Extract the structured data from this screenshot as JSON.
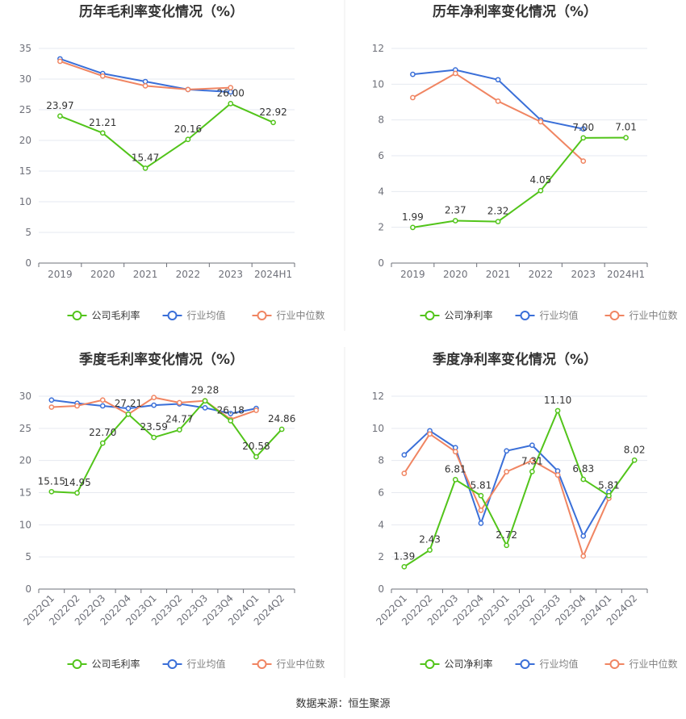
{
  "colors": {
    "company": "#52c41a",
    "avg": "#3a6fd8",
    "median": "#f08562"
  },
  "source": "数据来源：恒生聚源",
  "chart_data": [
    {
      "type": "line",
      "title": "历年毛利率变化情况（%）",
      "categories": [
        "2019",
        "2020",
        "2021",
        "2022",
        "2023",
        "2024H1"
      ],
      "ylim": [
        0,
        35
      ],
      "yticks": [
        0,
        5,
        10,
        15,
        20,
        25,
        30,
        35
      ],
      "rotate_x": false,
      "legend": [
        "公司毛利率",
        "行业均值",
        "行业中位数"
      ],
      "series": [
        {
          "name": "公司毛利率",
          "key": "company",
          "values": [
            23.97,
            21.21,
            15.47,
            20.16,
            26.0,
            22.92
          ],
          "labels": [
            "23.97",
            "21.21",
            "15.47",
            "20.16",
            "26.00",
            "22.92"
          ]
        },
        {
          "name": "行业均值",
          "key": "avg",
          "values": [
            33.3,
            30.9,
            29.6,
            28.3,
            27.9,
            null
          ]
        },
        {
          "name": "行业中位数",
          "key": "median",
          "values": [
            32.9,
            30.5,
            28.9,
            28.3,
            28.6,
            null
          ]
        }
      ]
    },
    {
      "type": "line",
      "title": "历年净利率变化情况（%）",
      "categories": [
        "2019",
        "2020",
        "2021",
        "2022",
        "2023",
        "2024H1"
      ],
      "ylim": [
        0,
        12
      ],
      "yticks": [
        0,
        2,
        4,
        6,
        8,
        10,
        12
      ],
      "rotate_x": false,
      "legend": [
        "公司净利率",
        "行业均值",
        "行业中位数"
      ],
      "series": [
        {
          "name": "公司净利率",
          "key": "company",
          "values": [
            1.99,
            2.37,
            2.32,
            4.05,
            7.0,
            7.01
          ],
          "labels": [
            "1.99",
            "2.37",
            "2.32",
            "4.05",
            "7.00",
            "7.01"
          ]
        },
        {
          "name": "行业均值",
          "key": "avg",
          "values": [
            10.55,
            10.8,
            10.25,
            8.0,
            7.5,
            null
          ]
        },
        {
          "name": "行业中位数",
          "key": "median",
          "values": [
            9.25,
            10.6,
            9.05,
            7.9,
            5.7,
            null
          ]
        }
      ]
    },
    {
      "type": "line",
      "title": "季度毛利率变化情况（%）",
      "categories": [
        "2022Q1",
        "2022Q2",
        "2022Q3",
        "2022Q4",
        "2023Q1",
        "2023Q2",
        "2023Q3",
        "2023Q4",
        "2024Q1",
        "2024Q2"
      ],
      "ylim": [
        0,
        30
      ],
      "yticks": [
        0,
        5,
        10,
        15,
        20,
        25,
        30
      ],
      "rotate_x": true,
      "legend": [
        "公司毛利率",
        "行业均值",
        "行业中位数"
      ],
      "series": [
        {
          "name": "公司毛利率",
          "key": "company",
          "values": [
            15.15,
            14.95,
            22.7,
            27.21,
            23.59,
            24.77,
            29.28,
            26.18,
            20.58,
            24.86
          ],
          "labels": [
            "15.15",
            "14.95",
            "22.70",
            "27.21",
            "23.59",
            "24.77",
            "29.28",
            "26.18",
            "20.58",
            "24.86"
          ]
        },
        {
          "name": "行业均值",
          "key": "avg",
          "values": [
            29.4,
            28.9,
            28.5,
            28.1,
            28.6,
            28.8,
            28.2,
            27.3,
            28.1,
            null
          ]
        },
        {
          "name": "行业中位数",
          "key": "median",
          "values": [
            28.3,
            28.5,
            29.4,
            27.2,
            29.8,
            29.0,
            29.3,
            26.4,
            27.8,
            null
          ]
        }
      ]
    },
    {
      "type": "line",
      "title": "季度净利率变化情况（%）",
      "categories": [
        "2022Q1",
        "2022Q2",
        "2022Q3",
        "2022Q4",
        "2023Q1",
        "2023Q2",
        "2023Q3",
        "2023Q4",
        "2024Q1",
        "2024Q2"
      ],
      "ylim": [
        0,
        12
      ],
      "yticks": [
        0,
        2,
        4,
        6,
        8,
        10,
        12
      ],
      "rotate_x": true,
      "legend": [
        "公司净利率",
        "行业均值",
        "行业中位数"
      ],
      "series": [
        {
          "name": "公司净利率",
          "key": "company",
          "values": [
            1.39,
            2.43,
            6.81,
            5.81,
            2.72,
            7.31,
            11.1,
            6.83,
            5.81,
            8.02
          ],
          "labels": [
            "1.39",
            "2.43",
            "6.81",
            "5.81",
            "2.72",
            "7.31",
            "11.10",
            "6.83",
            "5.81",
            "8.02"
          ]
        },
        {
          "name": "行业均值",
          "key": "avg",
          "values": [
            8.35,
            9.85,
            8.8,
            4.1,
            8.6,
            8.95,
            7.35,
            3.3,
            6.05,
            null
          ]
        },
        {
          "name": "行业中位数",
          "key": "median",
          "values": [
            7.2,
            9.65,
            8.55,
            4.9,
            7.3,
            8.0,
            7.1,
            2.05,
            5.65,
            null
          ]
        }
      ]
    }
  ]
}
